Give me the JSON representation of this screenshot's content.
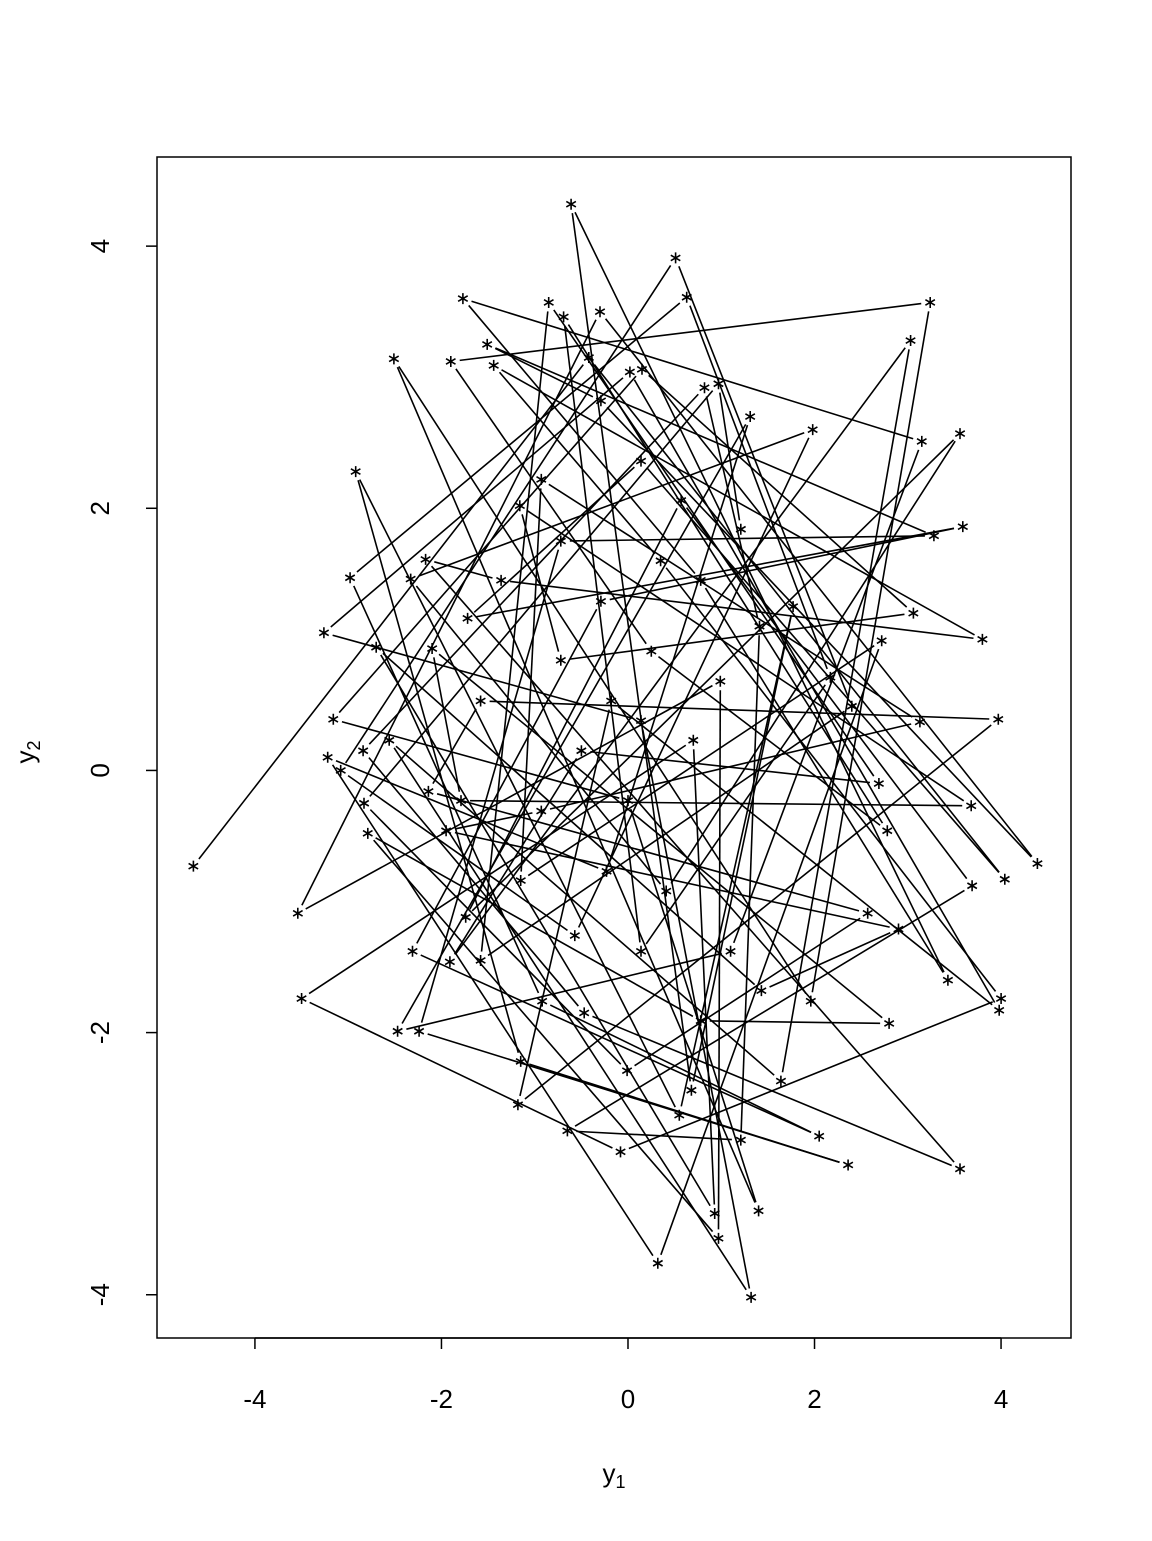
{
  "chart_data": {
    "type": "line",
    "plot_style": "points joined by lines, asterisk markers",
    "marker": "*",
    "title": "",
    "xlabel": {
      "base": "y",
      "sub": "1"
    },
    "ylabel": {
      "base": "y",
      "sub": "2"
    },
    "xlim": [
      -5.05,
      4.75
    ],
    "ylim": [
      -4.33,
      4.68
    ],
    "xticks": [
      -4,
      -2,
      0,
      2,
      4
    ],
    "yticks": [
      -4,
      -2,
      0,
      2,
      4
    ],
    "xtick_labels": [
      "-4",
      "-2",
      "0",
      "2",
      "4"
    ],
    "ytick_labels": [
      "-4",
      "-2",
      "0",
      "2",
      "4"
    ],
    "grid": false,
    "color": "#000000",
    "points": [
      [
        -4.66,
        -0.73
      ],
      [
        -3.54,
        -1.09
      ],
      [
        -3.5,
        -1.74
      ],
      [
        -3.26,
        1.05
      ],
      [
        -3.16,
        0.39
      ],
      [
        -3.22,
        0.1
      ],
      [
        -3.08,
        0.0
      ],
      [
        -2.98,
        1.47
      ],
      [
        -2.92,
        2.28
      ],
      [
        -2.84,
        0.15
      ],
      [
        -2.83,
        -0.25
      ],
      [
        -2.79,
        -0.48
      ],
      [
        -2.7,
        0.94
      ],
      [
        -2.56,
        0.23
      ],
      [
        -2.51,
        3.14
      ],
      [
        -2.47,
        -1.99
      ],
      [
        -2.33,
        1.46
      ],
      [
        -2.31,
        -1.38
      ],
      [
        -2.24,
        -1.99
      ],
      [
        -2.17,
        1.61
      ],
      [
        -2.14,
        -0.16
      ],
      [
        -2.1,
        0.93
      ],
      [
        -1.95,
        -0.46
      ],
      [
        -1.91,
        -1.46
      ],
      [
        -1.9,
        3.12
      ],
      [
        -1.77,
        3.6
      ],
      [
        -1.74,
        -1.12
      ],
      [
        -1.72,
        1.16
      ],
      [
        -1.51,
        3.25
      ],
      [
        -1.44,
        3.09
      ],
      [
        -1.18,
        -2.55
      ],
      [
        -1.16,
        2.02
      ],
      [
        -0.93,
        2.22
      ],
      [
        -0.85,
        3.57
      ],
      [
        -0.69,
        3.46
      ],
      [
        -0.61,
        4.32
      ],
      [
        -0.65,
        -2.75
      ],
      [
        -0.42,
        3.15
      ],
      [
        -0.3,
        3.5
      ],
      [
        -0.08,
        -2.91
      ],
      [
        0.02,
        3.04
      ],
      [
        0.15,
        3.06
      ],
      [
        0.32,
        -3.76
      ],
      [
        0.51,
        3.91
      ],
      [
        0.63,
        3.61
      ],
      [
        0.55,
        -2.63
      ],
      [
        0.82,
        2.92
      ],
      [
        0.97,
        2.95
      ],
      [
        0.97,
        -3.57
      ],
      [
        0.93,
        -3.38
      ],
      [
        1.32,
        -4.02
      ],
      [
        1.4,
        -3.36
      ],
      [
        1.31,
        2.7
      ],
      [
        1.98,
        2.6
      ],
      [
        2.05,
        -2.79
      ],
      [
        2.36,
        -3.01
      ],
      [
        3.56,
        -3.04
      ],
      [
        2.57,
        -1.09
      ],
      [
        2.8,
        -1.93
      ],
      [
        2.9,
        -1.21
      ],
      [
        3.03,
        3.28
      ],
      [
        3.24,
        3.57
      ],
      [
        3.15,
        2.51
      ],
      [
        3.56,
        2.57
      ],
      [
        3.59,
        1.86
      ],
      [
        3.28,
        1.79
      ],
      [
        3.8,
        1.0
      ],
      [
        3.97,
        0.39
      ],
      [
        3.68,
        -0.27
      ],
      [
        3.13,
        0.37
      ],
      [
        2.69,
        -0.1
      ],
      [
        2.78,
        -0.46
      ],
      [
        3.43,
        -1.6
      ],
      [
        3.69,
        -0.88
      ],
      [
        4.04,
        -0.83
      ],
      [
        4.39,
        -0.71
      ],
      [
        4.0,
        -1.74
      ],
      [
        3.98,
        -1.83
      ],
      [
        3.06,
        1.2
      ],
      [
        2.72,
        0.99
      ],
      [
        2.4,
        0.49
      ],
      [
        2.17,
        0.71
      ],
      [
        1.77,
        1.25
      ],
      [
        1.41,
        1.1
      ],
      [
        1.21,
        1.84
      ],
      [
        0.99,
        0.68
      ],
      [
        0.7,
        0.23
      ],
      [
        0.14,
        0.38
      ],
      [
        0.0,
        -0.23
      ],
      [
        -0.23,
        -0.77
      ],
      [
        -0.57,
        -1.26
      ],
      [
        -0.92,
        -1.76
      ],
      [
        -1.15,
        -2.22
      ],
      [
        -0.47,
        -1.85
      ],
      [
        -0.01,
        -2.29
      ],
      [
        0.78,
        -1.91
      ],
      [
        1.43,
        -1.68
      ],
      [
        1.64,
        -2.37
      ],
      [
        1.96,
        -1.76
      ],
      [
        1.1,
        -1.38
      ],
      [
        0.41,
        -0.92
      ],
      [
        -0.29,
        1.29
      ],
      [
        -0.72,
        1.75
      ],
      [
        -1.36,
        1.45
      ],
      [
        -1.58,
        0.53
      ],
      [
        -1.79,
        -0.23
      ],
      [
        -0.93,
        -0.31
      ],
      [
        -0.5,
        0.15
      ],
      [
        0.25,
        0.91
      ],
      [
        0.78,
        1.45
      ],
      [
        0.57,
        2.06
      ],
      [
        0.14,
        2.36
      ],
      [
        -0.29,
        2.82
      ],
      [
        0.35,
        1.6
      ],
      [
        -0.18,
        0.53
      ],
      [
        -0.72,
        0.84
      ],
      [
        -1.15,
        -0.84
      ],
      [
        -1.58,
        -1.45
      ],
      [
        0.14,
        -1.38
      ],
      [
        0.68,
        -2.44
      ],
      [
        1.21,
        -2.82
      ]
    ]
  }
}
